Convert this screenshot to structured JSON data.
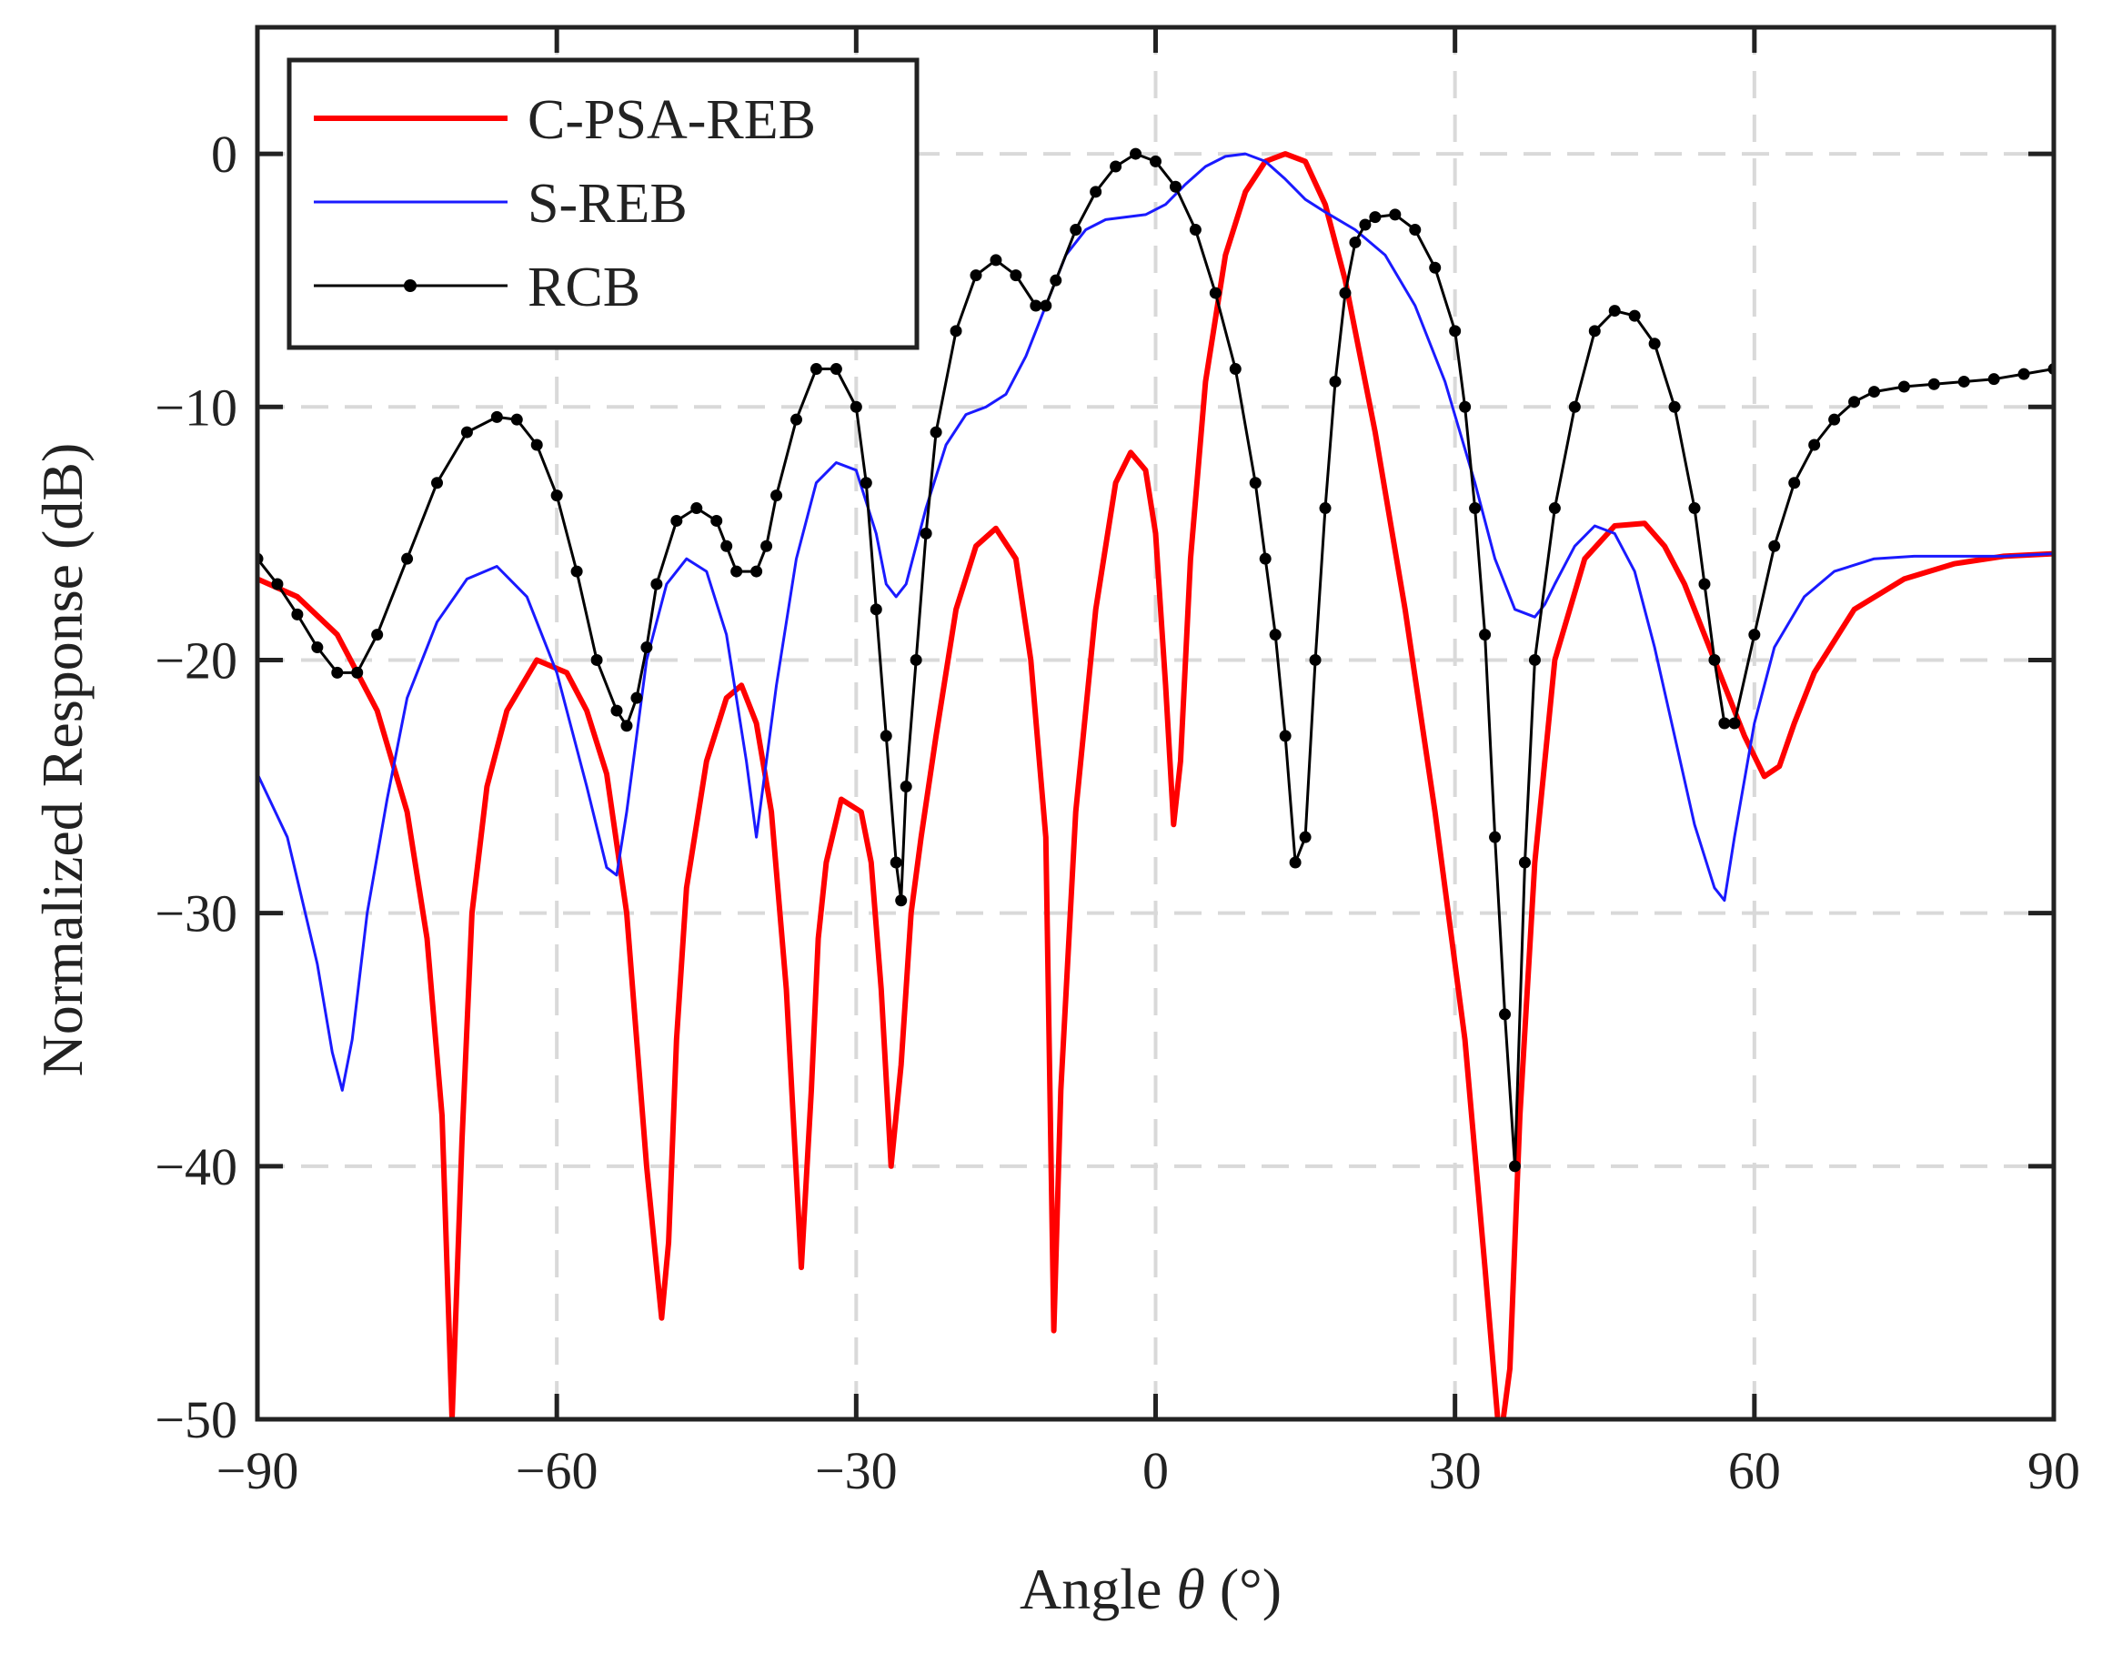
{
  "chart_data": {
    "type": "line",
    "title": "",
    "xlabel": "Angle θ (°)",
    "xlabel_prefix": "Angle ",
    "xlabel_symbol": "θ",
    "xlabel_suffix": " (°)",
    "ylabel": "Normalized Response (dB)",
    "xlim": [
      -90,
      90
    ],
    "ylim": [
      -50,
      5
    ],
    "xticks": [
      -90,
      -60,
      -30,
      0,
      30,
      60,
      90
    ],
    "yticks": [
      0,
      -10,
      -20,
      -30,
      -40,
      -50
    ],
    "xtick_labels": [
      "−90",
      "−60",
      "−30",
      "0",
      "30",
      "60",
      "90"
    ],
    "ytick_labels": [
      "0",
      "−10",
      "−20",
      "−30",
      "−40",
      "−50"
    ],
    "grid": true,
    "legend_position": "top-left",
    "series": [
      {
        "name": "C-PSA-REB",
        "color": "#ff0000",
        "marker": "none",
        "x": [
          -90,
          -86,
          -82,
          -78,
          -75,
          -73,
          -71.5,
          -70.5,
          -69.5,
          -68.5,
          -67,
          -65,
          -62,
          -59,
          -57,
          -55,
          -53,
          -51,
          -49.5,
          -48.8,
          -48,
          -47,
          -45,
          -43,
          -41.5,
          -40,
          -38.5,
          -37,
          -35.5,
          -34.5,
          -33.8,
          -33,
          -31.5,
          -29.5,
          -28.5,
          -27.5,
          -26.5,
          -25.5,
          -25,
          -24.5,
          -23.5,
          -22,
          -20,
          -18,
          -16,
          -14,
          -12.5,
          -11,
          -10.2,
          -9.5,
          -8,
          -6,
          -4,
          -2.5,
          -1,
          0,
          1,
          1.8,
          2.5,
          3.5,
          5,
          7,
          9,
          11,
          13,
          15,
          17,
          19,
          22,
          25,
          28,
          31,
          33,
          34.5,
          35.5,
          36.5,
          38,
          40,
          43,
          46,
          49,
          51,
          53,
          56,
          59,
          61,
          62.5,
          64,
          66,
          70,
          75,
          80,
          85,
          90
        ],
        "values": [
          -16.8,
          -17.5,
          -19,
          -22,
          -26,
          -31,
          -38,
          -50,
          -39,
          -30,
          -25,
          -22,
          -20,
          -20.5,
          -22,
          -24.5,
          -30,
          -40,
          -46,
          -43,
          -35,
          -29,
          -24,
          -21.5,
          -21,
          -22.5,
          -26,
          -33,
          -44,
          -37,
          -31,
          -28,
          -25.5,
          -26,
          -28,
          -33,
          -40,
          -36,
          -33,
          -30,
          -27,
          -23,
          -18,
          -15.5,
          -14.8,
          -16,
          -20,
          -27,
          -46.5,
          -37,
          -26,
          -18,
          -13,
          -11.8,
          -12.5,
          -15,
          -21,
          -26.5,
          -24,
          -16,
          -9,
          -4,
          -1.5,
          -0.3,
          0,
          -0.3,
          -2,
          -5,
          -11,
          -18,
          -26,
          -35,
          -44,
          -51,
          -48,
          -38,
          -28,
          -20,
          -16,
          -14.7,
          -14.6,
          -15.5,
          -17,
          -20,
          -23,
          -24.6,
          -24.2,
          -22.5,
          -20.5,
          -18,
          -16.8,
          -16.2,
          -15.9,
          -15.8
        ]
      },
      {
        "name": "S-REB",
        "color": "#1a1aff",
        "marker": "none",
        "x": [
          -90,
          -87,
          -84,
          -82.5,
          -81.5,
          -80.5,
          -79,
          -77,
          -75,
          -72,
          -69,
          -66,
          -63,
          -60,
          -57,
          -55,
          -54,
          -53,
          -51,
          -49,
          -47,
          -45,
          -43,
          -41,
          -40,
          -39,
          -38,
          -36,
          -34,
          -32,
          -30,
          -28,
          -27,
          -26,
          -25,
          -23,
          -21,
          -19,
          -17,
          -15,
          -13,
          -11,
          -9,
          -7,
          -5,
          -3,
          -1,
          1,
          3,
          5,
          7,
          9,
          11,
          13,
          15,
          17,
          20,
          23,
          26,
          29,
          32,
          34,
          36,
          38,
          39,
          40,
          42,
          44,
          46,
          48,
          50,
          52,
          54,
          56,
          57,
          58,
          60,
          62,
          65,
          68,
          72,
          76,
          80,
          85,
          90
        ],
        "values": [
          -24.5,
          -27,
          -32,
          -35.5,
          -37,
          -35,
          -30,
          -25.5,
          -21.5,
          -18.5,
          -16.8,
          -16.3,
          -17.5,
          -20.5,
          -25,
          -28.2,
          -28.5,
          -26,
          -20,
          -17,
          -16,
          -16.5,
          -19,
          -24,
          -27,
          -24,
          -21,
          -16,
          -13,
          -12.2,
          -12.5,
          -15,
          -17,
          -17.5,
          -17,
          -14,
          -11.5,
          -10.3,
          -10,
          -9.5,
          -8,
          -6,
          -4,
          -3,
          -2.6,
          -2.5,
          -2.4,
          -2,
          -1.2,
          -0.5,
          -0.1,
          0,
          -0.3,
          -1,
          -1.8,
          -2.3,
          -3,
          -4,
          -6,
          -9,
          -13,
          -16,
          -18,
          -18.3,
          -17.8,
          -17,
          -15.5,
          -14.7,
          -15,
          -16.5,
          -19.5,
          -23,
          -26.5,
          -29,
          -29.5,
          -27,
          -22.5,
          -19.5,
          -17.5,
          -16.5,
          -16,
          -15.9,
          -15.9,
          -15.9,
          -15.8
        ]
      },
      {
        "name": "RCB",
        "color": "#000000",
        "marker": "dot",
        "x": [
          -90,
          -88,
          -86,
          -84,
          -82,
          -80,
          -78,
          -75,
          -72,
          -69,
          -66,
          -64,
          -62,
          -60,
          -58,
          -56,
          -54,
          -53,
          -52,
          -51,
          -50,
          -48,
          -46,
          -44,
          -43,
          -42,
          -40,
          -39,
          -38,
          -36,
          -34,
          -32,
          -30,
          -29,
          -28,
          -27,
          -26,
          -25.5,
          -25,
          -24,
          -23,
          -22,
          -20,
          -18,
          -16,
          -14,
          -12,
          -11,
          -10,
          -8,
          -6,
          -4,
          -2,
          0,
          2,
          4,
          6,
          8,
          10,
          11,
          12,
          13,
          14,
          15,
          16,
          17,
          18,
          19,
          20,
          21,
          22,
          24,
          26,
          28,
          30,
          31,
          32,
          33,
          34,
          35,
          36,
          37,
          38,
          40,
          42,
          44,
          46,
          48,
          50,
          52,
          54,
          55,
          56,
          57,
          58,
          60,
          62,
          64,
          66,
          68,
          70,
          72,
          75,
          78,
          81,
          84,
          87,
          90
        ],
        "values": [
          -16,
          -17,
          -18.2,
          -19.5,
          -20.5,
          -20.5,
          -19,
          -16,
          -13,
          -11,
          -10.4,
          -10.5,
          -11.5,
          -13.5,
          -16.5,
          -20,
          -22,
          -22.6,
          -21.5,
          -19.5,
          -17,
          -14.5,
          -14,
          -14.5,
          -15.5,
          -16.5,
          -16.5,
          -15.5,
          -13.5,
          -10.5,
          -8.5,
          -8.5,
          -10,
          -13,
          -18,
          -23,
          -28,
          -29.5,
          -25,
          -20,
          -15,
          -11,
          -7,
          -4.8,
          -4.2,
          -4.8,
          -6,
          -6,
          -5,
          -3,
          -1.5,
          -0.5,
          0,
          -0.3,
          -1.3,
          -3,
          -5.5,
          -8.5,
          -13,
          -16,
          -19,
          -23,
          -28,
          -27,
          -20,
          -14,
          -9,
          -5.5,
          -3.5,
          -2.8,
          -2.5,
          -2.4,
          -3,
          -4.5,
          -7,
          -10,
          -14,
          -19,
          -27,
          -34,
          -40,
          -28,
          -20,
          -14,
          -10,
          -7,
          -6.2,
          -6.4,
          -7.5,
          -10,
          -14,
          -17,
          -20,
          -22.5,
          -22.5,
          -19,
          -15.5,
          -13,
          -11.5,
          -10.5,
          -9.8,
          -9.4,
          -9.2,
          -9.1,
          -9.0,
          -8.9,
          -8.7,
          -8.5
        ]
      }
    ]
  }
}
